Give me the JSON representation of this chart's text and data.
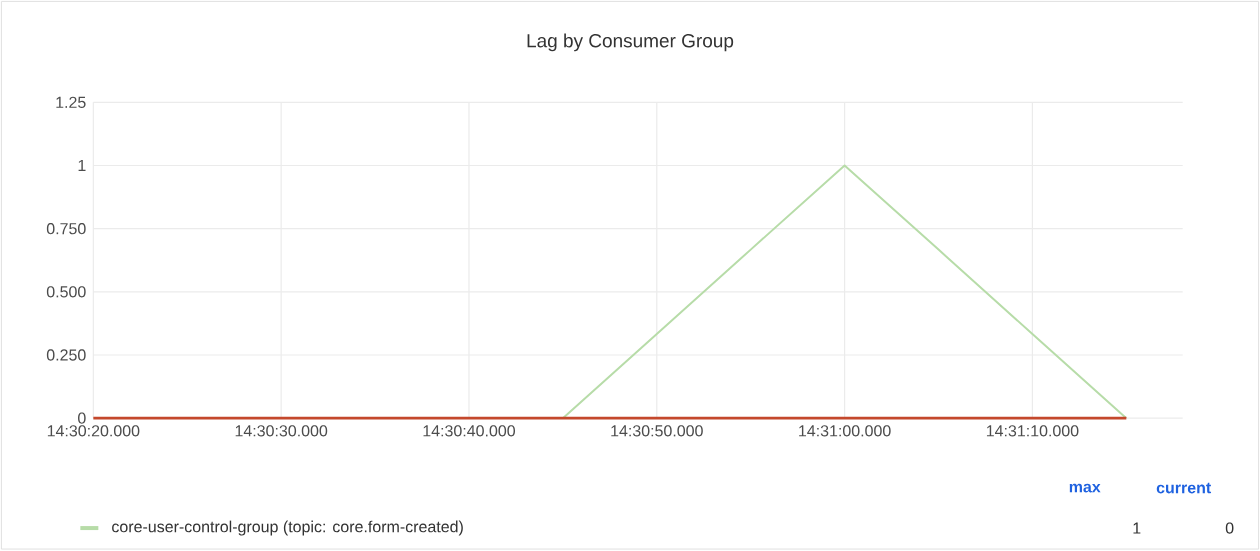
{
  "chart_data": {
    "type": "line",
    "title": "Lag by Consumer Group",
    "categories": [
      "14:30:20.000",
      null,
      "14:30:30.000",
      null,
      "14:30:40.000",
      null,
      "14:30:50.000",
      null,
      "14:31:00.000",
      null,
      "14:31:10.000",
      null
    ],
    "ylim": [
      0,
      1.25
    ],
    "yticks": [
      0,
      {
        "value": 0.25,
        "label": "0.250"
      },
      {
        "value": 0.5,
        "label": "0.500"
      },
      {
        "value": 0.75,
        "label": "0.750"
      },
      1,
      1.25
    ],
    "grid": true,
    "legend": "bottom",
    "marker": "none",
    "line_style": "solid",
    "series": [
      {
        "name": "core-user-control-group (topic: core.form-created)",
        "color": "#b7dca8",
        "values": [
          null,
          null,
          null,
          null,
          null,
          0,
          0.333,
          0.667,
          1,
          0.667,
          0.333,
          0
        ]
      },
      {
        "color": "#c4482c",
        "values": [
          0,
          0,
          0,
          0,
          0,
          0,
          0,
          0,
          0,
          0,
          0,
          0
        ]
      }
    ],
    "annotations": [
      "max",
      "current",
      "1",
      "0"
    ]
  }
}
